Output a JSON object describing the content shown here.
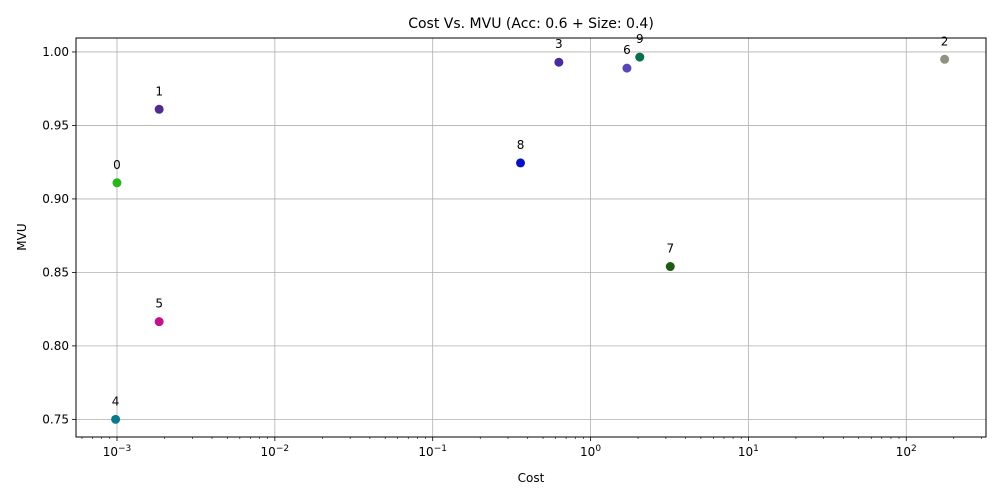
{
  "chart_data": {
    "type": "scatter",
    "title": "Cost Vs. MVU (Acc: 0.6 + Size: 0.4)",
    "xlabel": "Cost",
    "ylabel": "MVU",
    "xscale": "log",
    "xlim": [
      0.00055,
      320
    ],
    "ylim": [
      0.738,
      1.0095
    ],
    "grid": true,
    "x_ticks": [
      {
        "value": 0.001,
        "base": "10",
        "exp": "−3"
      },
      {
        "value": 0.01,
        "base": "10",
        "exp": "−2"
      },
      {
        "value": 0.1,
        "base": "10",
        "exp": "−1"
      },
      {
        "value": 1,
        "base": "10",
        "exp": "0"
      },
      {
        "value": 10,
        "base": "10",
        "exp": "1"
      },
      {
        "value": 100,
        "base": "10",
        "exp": "2"
      }
    ],
    "y_ticks": [
      {
        "value": 0.75,
        "label": "0.75"
      },
      {
        "value": 0.8,
        "label": "0.80"
      },
      {
        "value": 0.85,
        "label": "0.85"
      },
      {
        "value": 0.9,
        "label": "0.90"
      },
      {
        "value": 0.95,
        "label": "0.95"
      },
      {
        "value": 1.0,
        "label": "1.00"
      }
    ],
    "points": [
      {
        "label": "0",
        "x": 0.001,
        "y": 0.911,
        "color": "#2ab51c"
      },
      {
        "label": "1",
        "x": 0.00185,
        "y": 0.961,
        "color": "#4f2a8f"
      },
      {
        "label": "2",
        "x": 175,
        "y": 0.995,
        "color": "#8c9480"
      },
      {
        "label": "3",
        "x": 0.63,
        "y": 0.993,
        "color": "#4a2a9c"
      },
      {
        "label": "4",
        "x": 0.00098,
        "y": 0.75,
        "color": "#087a8c"
      },
      {
        "label": "5",
        "x": 0.00185,
        "y": 0.8165,
        "color": "#c4108c"
      },
      {
        "label": "6",
        "x": 1.7,
        "y": 0.989,
        "color": "#5a46b4"
      },
      {
        "label": "7",
        "x": 3.2,
        "y": 0.854,
        "color": "#1f5a12"
      },
      {
        "label": "8",
        "x": 0.36,
        "y": 0.9245,
        "color": "#0a10c4"
      },
      {
        "label": "9",
        "x": 2.05,
        "y": 0.9965,
        "color": "#0a6e4a"
      }
    ]
  }
}
